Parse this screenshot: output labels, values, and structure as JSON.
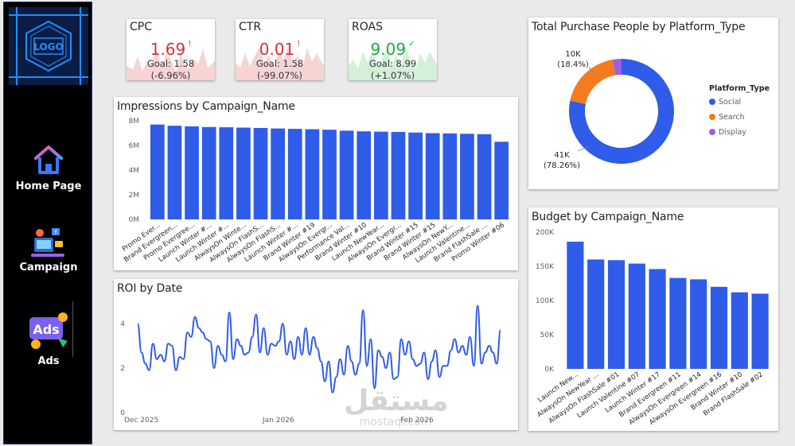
{
  "sidebar": {
    "logo_text": "LOGO",
    "items": [
      {
        "label": "Home Page",
        "icon": "home-icon"
      },
      {
        "label": "Campaign",
        "icon": "campaign-icon"
      },
      {
        "label": "Ads",
        "icon": "ads-icon"
      }
    ],
    "ads_icon_text": "Ads"
  },
  "kpis": [
    {
      "title": "CTR"
    }
  ],
  "kpi_cards": {
    "cpc": {
      "title": "CPC",
      "value": "1.69",
      "flag": "!",
      "goal": "Goal: 1.58 (-6.96%)",
      "status_color": "#d13438"
    },
    "ctr": {
      "title": "CTR",
      "value": "0.01",
      "flag": "!",
      "goal_line1": "Goal: 1.58",
      "goal_line2": "(-99.07%)",
      "status_color": "#d13438"
    },
    "roas": {
      "title": "ROAS",
      "value": "9.09",
      "flag": "✓",
      "goal_line1": "Goal: 8.99",
      "goal_line2": "(+1.07%)",
      "status_color": "#1aab40"
    }
  },
  "colors": {
    "bar": "#2f5ce8",
    "social": "#2f5ce8",
    "search": "#f47b20",
    "display": "#9b5ee8",
    "bad": "#d13438",
    "good": "#1aab40"
  },
  "charts": {
    "impressions": {
      "title": "Impressions by Campaign_Name",
      "chart_data": {
        "type": "bar",
        "categories": [
          "Promo Ever...",
          "Brand Evergreen...",
          "Promo Evergree...",
          "Launch Winter #...",
          "Launch Winter #...",
          "AlwaysOn Winte...",
          "AlwaysOn FlashS...",
          "AlwaysOn FlashS...",
          "Launch Winter #...",
          "Brand Winter #19",
          "AlwaysOn Evergr...",
          "Performance Val...",
          "Brand Winter #10",
          "Launch NewYear...",
          "AlwaysOn Evergr...",
          "Brand Winter #15",
          "Brand Winter #15",
          "AlwaysOn NewY...",
          "Launch Valentine...",
          "Brand FlashSale ...",
          "Promo Winter #06"
        ],
        "values": [
          7.7,
          7.6,
          7.55,
          7.5,
          7.48,
          7.45,
          7.42,
          7.38,
          7.35,
          7.32,
          7.28,
          7.2,
          7.15,
          7.12,
          7.1,
          7.05,
          7.0,
          6.98,
          6.95,
          6.92,
          6.3
        ],
        "ylabel": "",
        "ylim": [
          0,
          8
        ],
        "yticks": [
          "0M",
          "2M",
          "4M",
          "6M",
          "8M"
        ]
      }
    },
    "purchase": {
      "title": "Total Purchase People by Platform_Type",
      "legend_title": "Platform_Type",
      "chart_data": {
        "type": "pie",
        "categories": [
          "Social",
          "Search",
          "Display"
        ],
        "values": [
          41000,
          10000,
          1400
        ],
        "percents": [
          78.26,
          18.4,
          3.34
        ]
      },
      "labels": {
        "social_value": "41K",
        "social_pct": "(78.26%)",
        "search_value": "10K",
        "search_pct": "(18.4%)"
      }
    },
    "budget": {
      "title": "Budget by Campaign_Name",
      "chart_data": {
        "type": "bar",
        "categories": [
          "Launch New...",
          "AlwaysOn NewYear ...",
          "AlwaysOn FlashSale #01",
          "Launch Valentine #07",
          "Launch Winter #17",
          "Brand Evergreen #11",
          "AlwaysOn Evergreen #14",
          "AlwaysOn Evergreen #16",
          "Brand Winter #10",
          "Brand FlashSale #02"
        ],
        "values": [
          186000,
          160000,
          159000,
          154000,
          146000,
          133000,
          131000,
          120000,
          112000,
          110000
        ],
        "ylim": [
          0,
          200000
        ],
        "yticks": [
          "0K",
          "50K",
          "100K",
          "150K",
          "200K"
        ]
      }
    },
    "roi": {
      "title": "ROI by Date",
      "chart_data": {
        "type": "line",
        "x_start": "2025-12-01",
        "values": [
          4.0,
          2.7,
          2.2,
          1.9,
          3.1,
          2.4,
          2.6,
          2.3,
          3.1,
          3.0,
          1.9,
          2.5,
          2.4,
          3.6,
          3.4,
          4.3,
          3.8,
          3.6,
          3.3,
          3.2,
          2.0,
          3.0,
          2.6,
          2.3,
          4.5,
          2.4,
          3.3,
          3.0,
          2.6,
          2.7,
          3.4,
          4.4,
          2.7,
          3.8,
          2.6,
          3.1,
          3.0,
          3.2,
          4.0,
          2.6,
          3.2,
          2.4,
          3.4,
          2.6,
          3.8,
          2.6,
          3.4,
          2.9,
          2.3,
          1.4,
          2.3,
          0.9,
          1.6,
          2.4,
          1.7,
          3.0,
          2.3,
          1.7,
          2.2,
          4.6,
          2.1,
          3.3,
          1.1,
          2.8,
          2.5,
          2.0,
          2.7,
          1.5,
          1.6,
          3.3,
          2.6,
          3.2,
          2.4,
          2.1,
          2.2,
          2.7,
          1.5,
          2.3,
          2.8,
          1.6,
          2.1,
          2.1,
          2.8,
          3.3,
          2.7,
          3.0,
          2.6,
          3.4,
          2.1,
          4.8,
          2.2,
          2.7,
          3.0,
          2.7,
          2.2,
          3.7
        ],
        "ylim": [
          0,
          5
        ],
        "yticks": [
          "0",
          "2",
          "4"
        ],
        "xticks": [
          "Dec 2025",
          "Jan 2026",
          "Feb 2026"
        ]
      }
    }
  },
  "watermark": {
    "arabic": "مستقل",
    "latin": "mostaql.com"
  }
}
